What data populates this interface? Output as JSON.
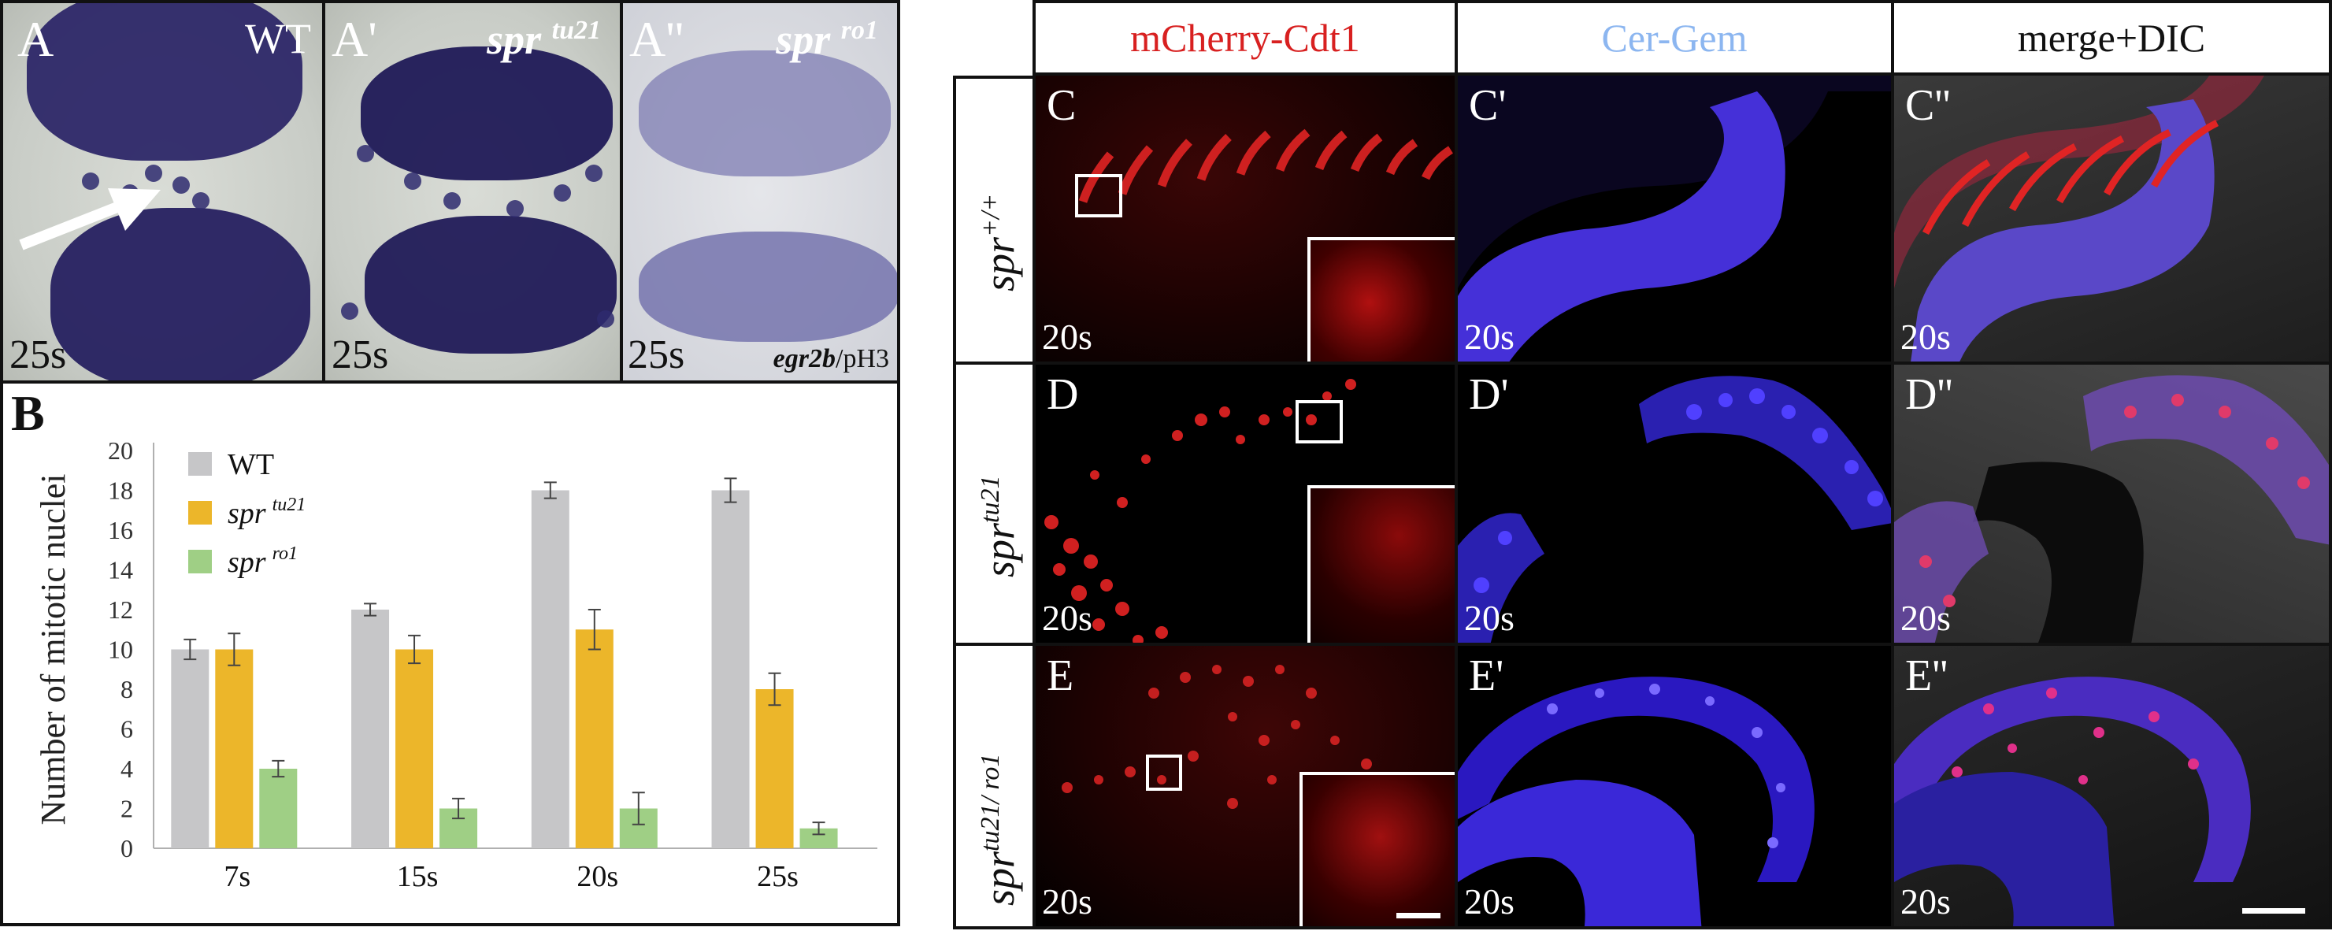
{
  "panels_a": {
    "a": {
      "letter": "A",
      "genotype": "WT",
      "stage": "25s"
    },
    "a1": {
      "letter": "A'",
      "genotype": "spr",
      "sup": "tu21",
      "stage": "25s"
    },
    "a2": {
      "letter": "A''",
      "genotype": "spr",
      "sup": "ro1",
      "stage": "25s",
      "stain_italic": "egr2b",
      "stain_rest": "/pH3"
    }
  },
  "panel_b": {
    "letter": "B"
  },
  "chart_data": {
    "type": "bar",
    "title": "",
    "xlabel": "",
    "ylabel": "Number of mitotic nuclei",
    "categories": [
      "7s",
      "15s",
      "20s",
      "25s"
    ],
    "ylim": [
      0,
      20
    ],
    "yticks": [
      0,
      2,
      4,
      6,
      8,
      10,
      12,
      14,
      16,
      18,
      20
    ],
    "grid": false,
    "legend_position": "top-left",
    "series": [
      {
        "name": "WT",
        "sup": "",
        "color": "#c6c6c8",
        "values": [
          10,
          12,
          18,
          18
        ],
        "errors": [
          0.5,
          0.3,
          0.4,
          0.6
        ]
      },
      {
        "name": "spr",
        "sup": "tu21",
        "color": "#ecb62a",
        "values": [
          10,
          10,
          11,
          8
        ],
        "errors": [
          0.8,
          0.7,
          1.0,
          0.8
        ]
      },
      {
        "name": "spr",
        "sup": "ro1",
        "color": "#9fcf85",
        "values": [
          4,
          2,
          2,
          1
        ],
        "errors": [
          0.4,
          0.5,
          0.8,
          0.3
        ]
      }
    ]
  },
  "headers": {
    "col1": "mCherry-Cdt1",
    "col2": "Cer-Gem",
    "col3": "merge+DIC"
  },
  "row_labels": [
    {
      "genotype": "spr",
      "sup": "+/+"
    },
    {
      "genotype": "spr",
      "sup": "tu21"
    },
    {
      "genotype": "spr",
      "sup": "tu21/ ro1"
    }
  ],
  "panels_fl": [
    {
      "letter": "C",
      "stage": "20s"
    },
    {
      "letter": "C'",
      "stage": "20s"
    },
    {
      "letter": "C''",
      "stage": "20s"
    },
    {
      "letter": "D",
      "stage": "20s"
    },
    {
      "letter": "D'",
      "stage": "20s"
    },
    {
      "letter": "D''",
      "stage": "20s"
    },
    {
      "letter": "E",
      "stage": "20s"
    },
    {
      "letter": "E'",
      "stage": "20s"
    },
    {
      "letter": "E''",
      "stage": "20s"
    }
  ],
  "colors": {
    "cdt1": "#d82020",
    "gem": "#8cb6f0",
    "rhombomere": "#2a2366"
  }
}
